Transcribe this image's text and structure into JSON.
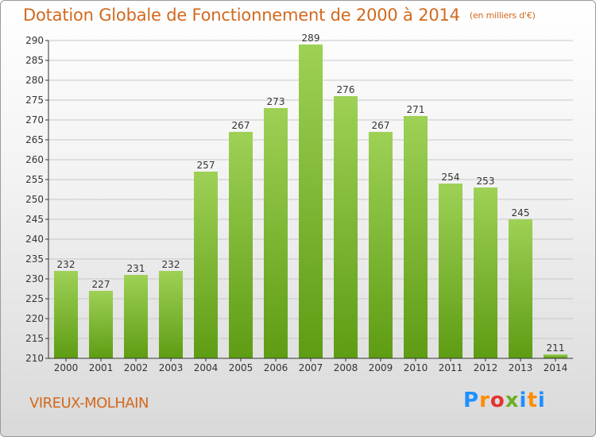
{
  "title": "Dotation Globale de Fonctionnement de 2000 à 2014",
  "unit_note": "(en milliers d'€)",
  "town": "VIREUX-MOLHAIN",
  "logo": {
    "text": "Proxiti",
    "letters": [
      "P",
      "r",
      "o",
      "x",
      "i",
      "t",
      "i"
    ],
    "colors": [
      "#1e90ff",
      "#ff8c00",
      "#e3342f",
      "#6ab023",
      "#1e90ff",
      "#ff8c00",
      "#1e90ff"
    ]
  },
  "colors": {
    "bar_top": "#9ed156",
    "bar_bottom": "#5e9c13",
    "title": "#d2691e",
    "grid": "#c8c8c8",
    "axis": "#333333"
  },
  "chart_data": {
    "type": "bar",
    "categories": [
      "2000",
      "2001",
      "2002",
      "2003",
      "2004",
      "2005",
      "2006",
      "2007",
      "2008",
      "2009",
      "2010",
      "2011",
      "2012",
      "2013",
      "2014"
    ],
    "values": [
      232,
      227,
      231,
      232,
      257,
      267,
      273,
      289,
      276,
      267,
      271,
      254,
      253,
      245,
      211
    ],
    "ylim": [
      210,
      290
    ],
    "yticks": [
      210,
      215,
      220,
      225,
      230,
      235,
      240,
      245,
      250,
      255,
      260,
      265,
      270,
      275,
      280,
      285,
      290
    ],
    "grid": true,
    "legend": "none",
    "title": "Dotation Globale de Fonctionnement de 2000 à 2014",
    "xlabel": "",
    "ylabel": ""
  }
}
